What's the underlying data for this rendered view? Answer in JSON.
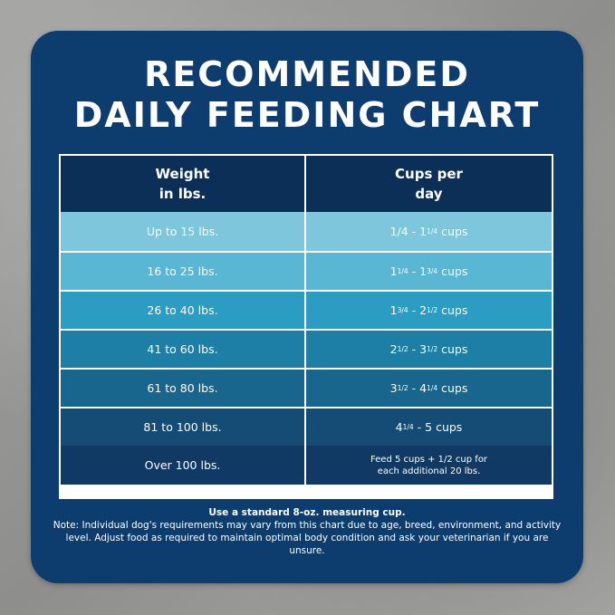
{
  "title": {
    "line1": "RECOMMENDED",
    "line2": "DAILY FEEDING CHART"
  },
  "table": {
    "headers": {
      "weight_line1": "Weight",
      "weight_line2": "in lbs.",
      "cups_line1": "Cups per",
      "cups_line2": "day"
    },
    "rows": [
      {
        "weight": "Up to 15 lbs.",
        "a": "1/4",
        "a_sup": "",
        "sep": " - ",
        "b": "1",
        "b_sup": "1/4",
        "unit": " cups"
      },
      {
        "weight": "16 to 25 lbs.",
        "a": "1",
        "a_sup": "1/4",
        "sep": " - ",
        "b": "1",
        "b_sup": "3/4",
        "unit": " cups"
      },
      {
        "weight": "26 to 40 lbs.",
        "a": "1",
        "a_sup": "3/4",
        "sep": " - ",
        "b": "2",
        "b_sup": "1/2",
        "unit": " cups"
      },
      {
        "weight": "41 to 60 lbs.",
        "a": "2",
        "a_sup": "1/2",
        "sep": " - ",
        "b": "3",
        "b_sup": "1/2",
        "unit": " cups"
      },
      {
        "weight": "61 to 80 lbs.",
        "a": "3",
        "a_sup": "1/2",
        "sep": " - ",
        "b": "4",
        "b_sup": "1/4",
        "unit": " cups"
      },
      {
        "weight": "81 to 100 lbs.",
        "a": "4",
        "a_sup": "1/4",
        "sep": " - ",
        "b": "5",
        "b_sup": "",
        "unit": " cups"
      }
    ],
    "last_row": {
      "weight": "Over 100 lbs.",
      "line1": "Feed 5 cups + 1/2 cup for",
      "line2": "each additional 20 lbs."
    }
  },
  "note": {
    "bold": "Use a standard 8-oz. measuring cup.",
    "body": "Note: Individual dog's requirements may vary from this chart due to age, breed, environment, and activity level. Adjust food as required to maintain optimal body condition and ask your veterinarian if you are unsure."
  },
  "colors": {
    "card": "#0d3d6e",
    "header": "#0c2f58",
    "rows": [
      "#7dc6dc",
      "#5ab7d3",
      "#2b9cc2",
      "#1e7fa6",
      "#18658d",
      "#144c76",
      "#103a63"
    ]
  }
}
